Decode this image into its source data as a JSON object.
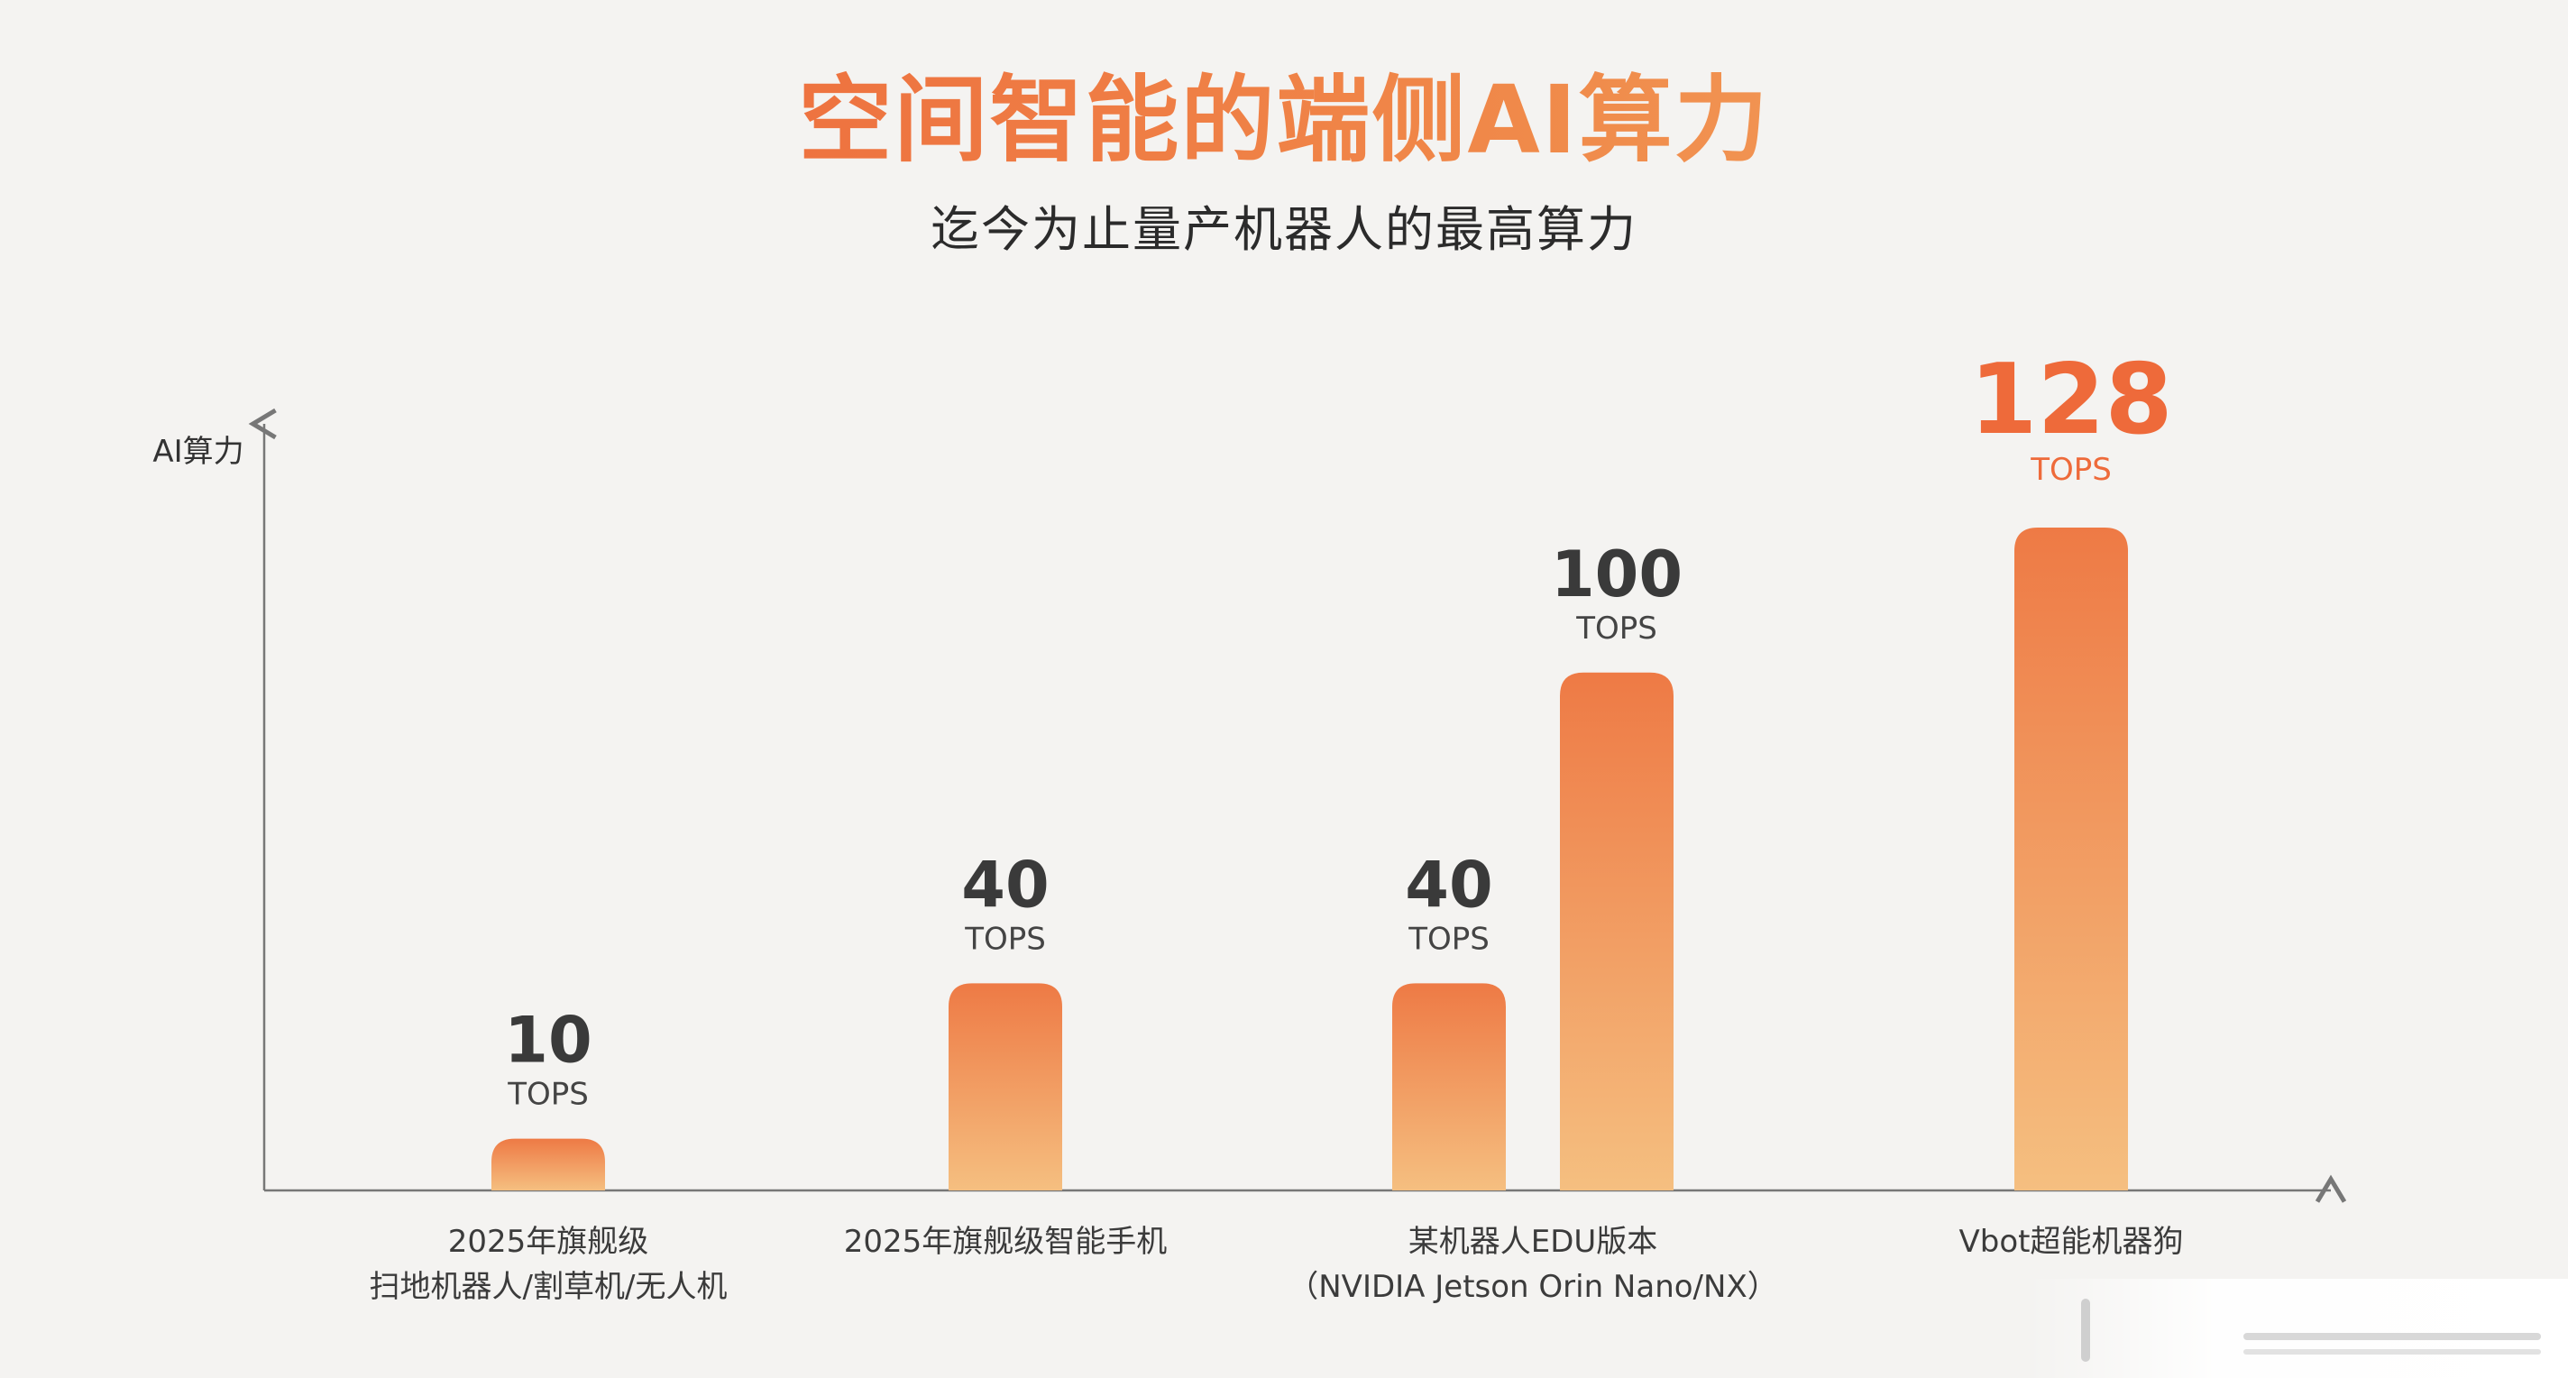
{
  "title": "空间智能的端侧AI算力",
  "subtitle": "迄今为止量产机器人的最高算力",
  "chart_data": {
    "type": "bar",
    "ylabel": "AI算力",
    "xlabel": "",
    "unit": "TOPS",
    "ylim": [
      0,
      150
    ],
    "grid": false,
    "highlight_color": "#ee6a3a",
    "bar_gradient": [
      "#ee7a45",
      "#f5bf80"
    ],
    "groups": [
      {
        "category": [
          "2025年旗舰级",
          "扫地机器人/割草机/无人机"
        ],
        "values": [
          10
        ],
        "labels": [
          "10"
        ]
      },
      {
        "category": [
          "2025年旗舰级智能手机"
        ],
        "values": [
          40
        ],
        "labels": [
          "40"
        ]
      },
      {
        "category": [
          "某机器人EDU版本",
          "（NVIDIA Jetson Orin Nano/NX）"
        ],
        "values": [
          40,
          100
        ],
        "labels": [
          "40",
          "100"
        ]
      },
      {
        "category": [
          "Vbot超能机器狗"
        ],
        "values": [
          128
        ],
        "labels": [
          "128"
        ],
        "highlight": true
      }
    ]
  }
}
